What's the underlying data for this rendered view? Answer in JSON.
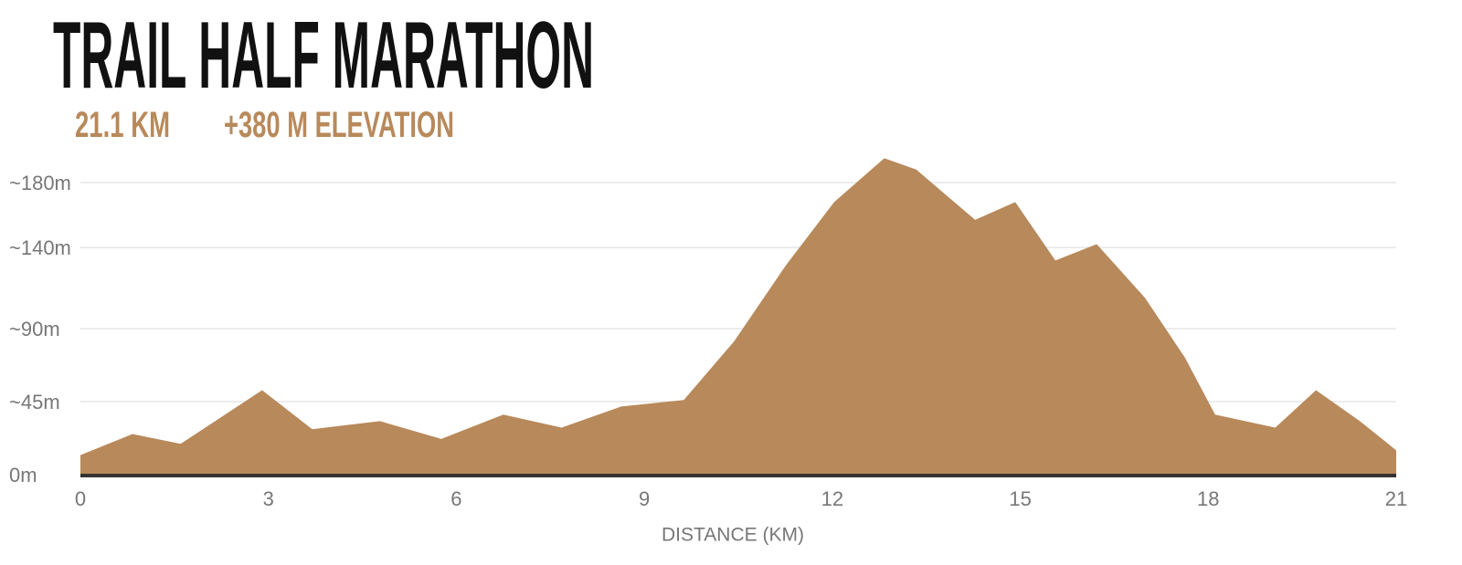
{
  "chart_data": {
    "type": "area",
    "title": "TRAIL HALF MARATHON",
    "subtitle_distance": "21.1 KM",
    "subtitle_elevation": "+380 M ELEVATION",
    "x_label": "DISTANCE (KM)",
    "color": "#b8895a",
    "x": [
      0,
      0.83,
      1.6,
      2.9,
      3.7,
      4.78,
      5.76,
      6.75,
      7.68,
      8.63,
      9.63,
      10.43,
      11.26,
      12.03,
      12.83,
      13.34,
      14.28,
      14.92,
      15.56,
      16.22,
      16.99,
      17.63,
      18.11,
      19.07,
      19.72,
      20.42,
      21
    ],
    "values": [
      12,
      25,
      19,
      52,
      28,
      33,
      22,
      37,
      29,
      42,
      46,
      82,
      129,
      168,
      195,
      188,
      157,
      168,
      132,
      142,
      109,
      72,
      37,
      29,
      52,
      33,
      15
    ],
    "xlim": [
      0,
      21
    ],
    "xticks": [
      0,
      3,
      6,
      9,
      12,
      15,
      18,
      21
    ],
    "ylim": [
      0,
      180
    ],
    "yticks": [
      {
        "value": 0,
        "label": "0m"
      },
      {
        "value": 45,
        "label": "~45m"
      },
      {
        "value": 90,
        "label": "~90m"
      },
      {
        "value": 140,
        "label": "~140m"
      },
      {
        "value": 180,
        "label": "~180m"
      }
    ],
    "grid": true
  }
}
